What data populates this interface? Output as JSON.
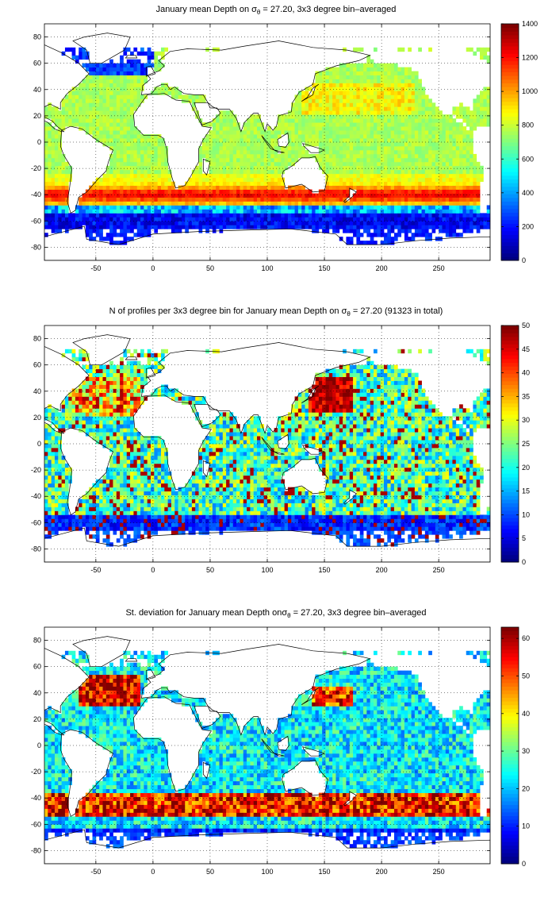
{
  "chart_data": [
    {
      "type": "heatmap",
      "title_pre": "January mean Depth on ",
      "title_sigma": "σ",
      "title_sub": "θ",
      "title_post": " = 27.20, 3x3 degree bin–averaged",
      "xticks": [
        -50,
        0,
        50,
        100,
        150,
        200,
        250
      ],
      "yticks": [
        80,
        60,
        40,
        20,
        0,
        -20,
        -40,
        -60,
        -80
      ],
      "xlim": [
        -95,
        295
      ],
      "ylim": [
        -90,
        90
      ],
      "grid": true,
      "colorbar": {
        "min": 0,
        "max": 1400,
        "ticks": [
          0,
          200,
          400,
          600,
          800,
          1000,
          1200,
          1400
        ]
      },
      "colormap": "jet",
      "field": "depth"
    },
    {
      "type": "heatmap",
      "title_pre": "N of profiles per 3x3 degree bin for January mean Depth on ",
      "title_sigma": "σ",
      "title_sub": "θ",
      "title_post": " = 27.20 (91323 in total)",
      "xticks": [
        -50,
        0,
        50,
        100,
        150,
        200,
        250
      ],
      "yticks": [
        80,
        60,
        40,
        20,
        0,
        -20,
        -40,
        -60,
        -80
      ],
      "xlim": [
        -95,
        295
      ],
      "ylim": [
        -90,
        90
      ],
      "grid": true,
      "colorbar": {
        "min": 0,
        "max": 50,
        "ticks": [
          0,
          5,
          10,
          15,
          20,
          25,
          30,
          35,
          40,
          45,
          50
        ]
      },
      "colormap": "jet",
      "field": "count"
    },
    {
      "type": "heatmap",
      "title_pre": "St. deviation for January mean Depth on",
      "title_sigma": "σ",
      "title_sub": "θ",
      "title_post": " = 27.20, 3x3 degree bin–averaged",
      "xticks": [
        -50,
        0,
        50,
        100,
        150,
        200,
        250
      ],
      "yticks": [
        80,
        60,
        40,
        20,
        0,
        -20,
        -40,
        -60,
        -80
      ],
      "xlim": [
        -95,
        295
      ],
      "ylim": [
        -90,
        90
      ],
      "grid": true,
      "colorbar": {
        "min": 0,
        "max": 63,
        "ticks": [
          0,
          10,
          20,
          30,
          40,
          50,
          60
        ]
      },
      "colormap": "jet",
      "field": "std"
    }
  ]
}
